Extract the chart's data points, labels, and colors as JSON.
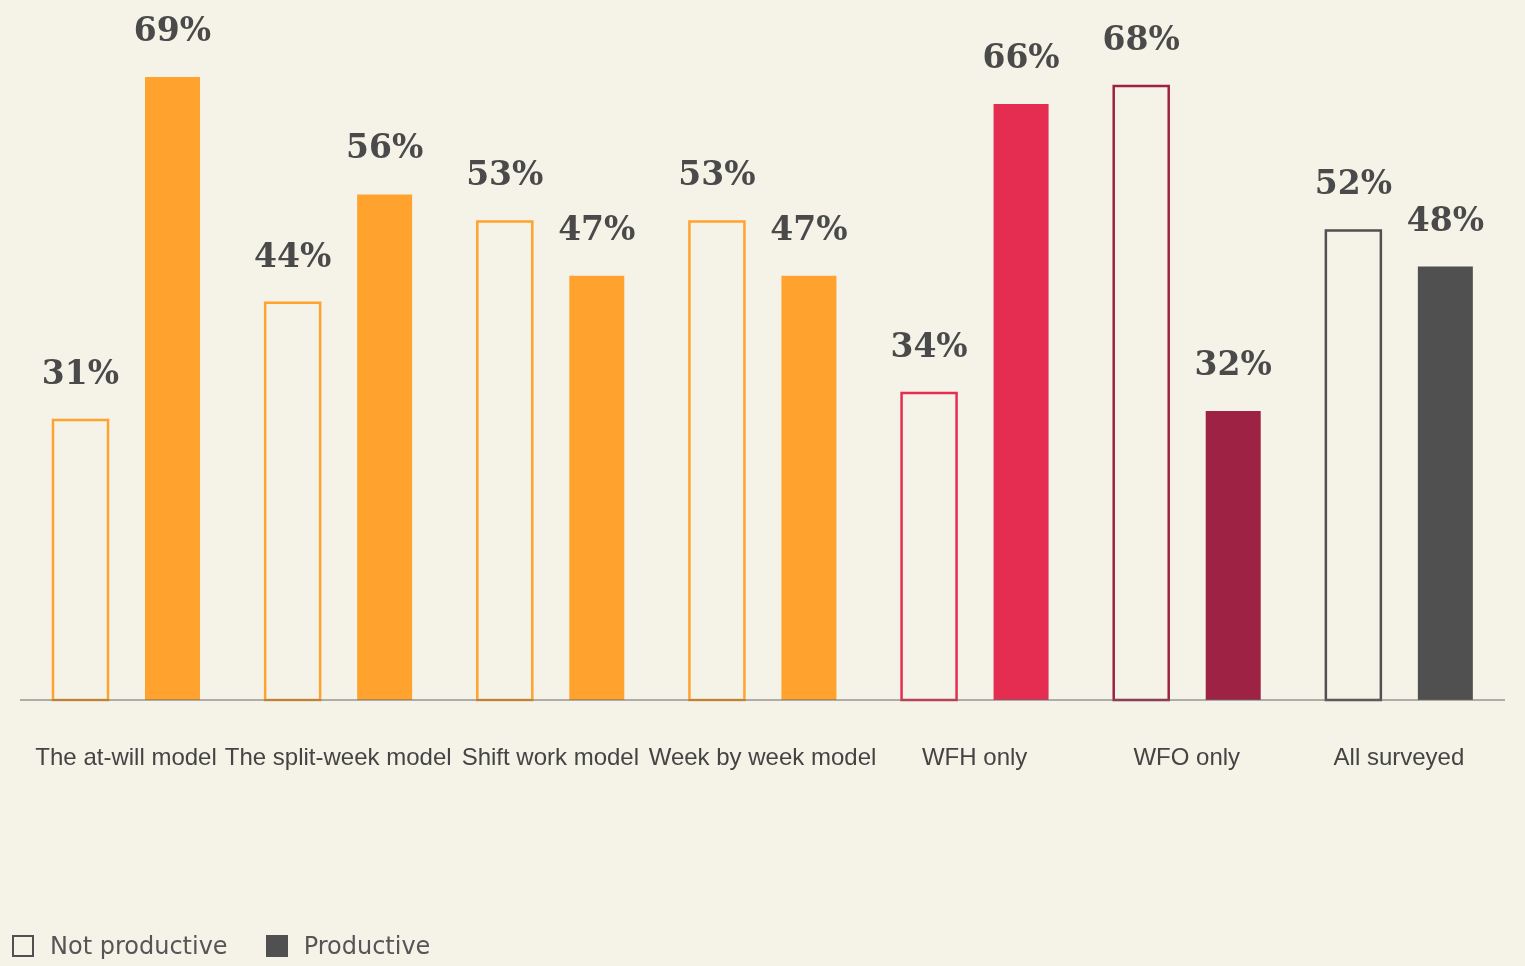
{
  "chart_data": {
    "type": "bar",
    "categories": [
      "The at-will model",
      "The split-week model",
      "Shift work model",
      "Week by week model",
      "WFH only",
      "WFO only",
      "All surveyed"
    ],
    "series": [
      {
        "name": "Not productive",
        "color": "#505050",
        "colors": [
          "#ffa32e",
          "#ffa32e",
          "#ffa32e",
          "#ffa32e",
          "#e52d52",
          "#9e2244",
          "#505050"
        ],
        "values": [
          31,
          44,
          53,
          53,
          34,
          68,
          52
        ],
        "value_labels": [
          "31%",
          "44%",
          "53%",
          "53%",
          "34%",
          "68%",
          "52%"
        ]
      },
      {
        "name": "Productive",
        "color": "#505050",
        "colors": [
          "#ffa32e",
          "#ffa32e",
          "#ffa32e",
          "#ffa32e",
          "#e52d52",
          "#9e2244",
          "#505050"
        ],
        "values": [
          69,
          56,
          47,
          47,
          66,
          32,
          48
        ],
        "value_labels": [
          "69%",
          "56%",
          "47%",
          "47%",
          "66%",
          "32%",
          "48%"
        ]
      }
    ],
    "legend": "bottom left",
    "grid": false
  }
}
